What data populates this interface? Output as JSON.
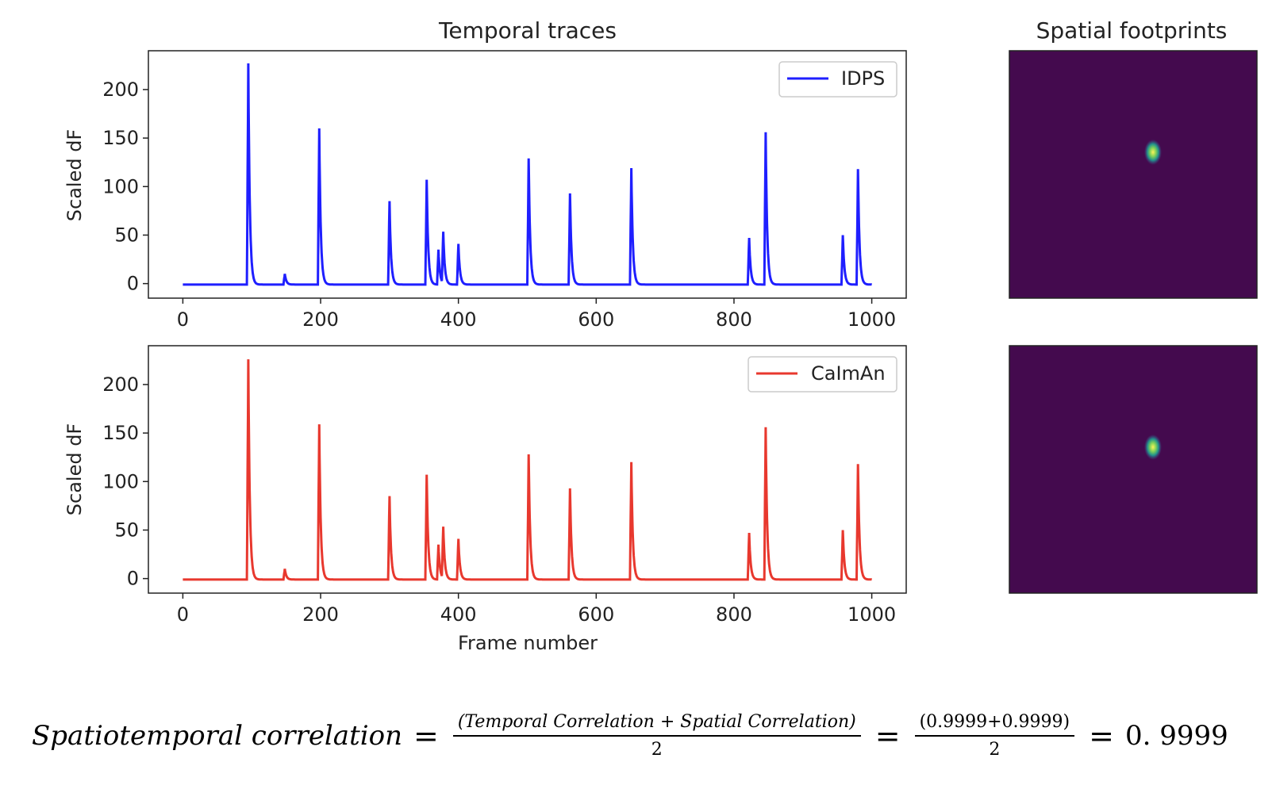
{
  "chart_data": [
    {
      "type": "line",
      "title": "Temporal traces",
      "xlabel": "",
      "ylabel": "Scaled dF",
      "xlim": [
        -50,
        1050
      ],
      "ylim": [
        -15,
        240
      ],
      "xticks": [
        "0",
        "200",
        "400",
        "600",
        "800",
        "1000"
      ],
      "yticks": [
        "0",
        "50",
        "100",
        "150",
        "200"
      ],
      "legend": "top-right",
      "series": [
        {
          "name": "IDPS",
          "color": "#1f1fff",
          "baseline": -1,
          "peaks": [
            {
              "x": 95,
              "y": 228
            },
            {
              "x": 148,
              "y": 11
            },
            {
              "x": 198,
              "y": 161
            },
            {
              "x": 300,
              "y": 86
            },
            {
              "x": 354,
              "y": 108
            },
            {
              "x": 371,
              "y": 36
            },
            {
              "x": 378,
              "y": 53
            },
            {
              "x": 400,
              "y": 42
            },
            {
              "x": 502,
              "y": 130
            },
            {
              "x": 562,
              "y": 94
            },
            {
              "x": 651,
              "y": 120
            },
            {
              "x": 822,
              "y": 48
            },
            {
              "x": 846,
              "y": 157
            },
            {
              "x": 958,
              "y": 51
            },
            {
              "x": 980,
              "y": 119
            }
          ]
        }
      ]
    },
    {
      "type": "line",
      "title": "",
      "xlabel": "Frame number",
      "ylabel": "Scaled dF",
      "xlim": [
        -50,
        1050
      ],
      "ylim": [
        -15,
        240
      ],
      "xticks": [
        "0",
        "200",
        "400",
        "600",
        "800",
        "1000"
      ],
      "yticks": [
        "0",
        "50",
        "100",
        "150",
        "200"
      ],
      "legend": "top-right",
      "series": [
        {
          "name": "CaImAn",
          "color": "#e8382e",
          "baseline": -1,
          "peaks": [
            {
              "x": 95,
              "y": 227
            },
            {
              "x": 148,
              "y": 11
            },
            {
              "x": 198,
              "y": 160
            },
            {
              "x": 300,
              "y": 86
            },
            {
              "x": 354,
              "y": 108
            },
            {
              "x": 371,
              "y": 36
            },
            {
              "x": 378,
              "y": 53
            },
            {
              "x": 400,
              "y": 42
            },
            {
              "x": 502,
              "y": 129
            },
            {
              "x": 562,
              "y": 94
            },
            {
              "x": 651,
              "y": 121
            },
            {
              "x": 822,
              "y": 48
            },
            {
              "x": 846,
              "y": 157
            },
            {
              "x": 958,
              "y": 51
            },
            {
              "x": 980,
              "y": 119
            }
          ]
        }
      ]
    },
    {
      "type": "heatmap",
      "title": "Spatial footprints",
      "background_color": "#440a4e",
      "spot_color": "#e6f04a",
      "spot_position": [
        0.58,
        0.41
      ]
    },
    {
      "type": "heatmap",
      "title": "",
      "background_color": "#440a4e",
      "spot_color": "#e6f04a",
      "spot_position": [
        0.58,
        0.41
      ]
    }
  ],
  "formula": {
    "lhs": "Spatiotemporal correlation",
    "eq": "=",
    "num1": "(Temporal Correlation + Spatial Correlation)",
    "den1": "2",
    "num2": "(0.9999+0.9999)",
    "den2": "2",
    "result": "0. 9999"
  }
}
